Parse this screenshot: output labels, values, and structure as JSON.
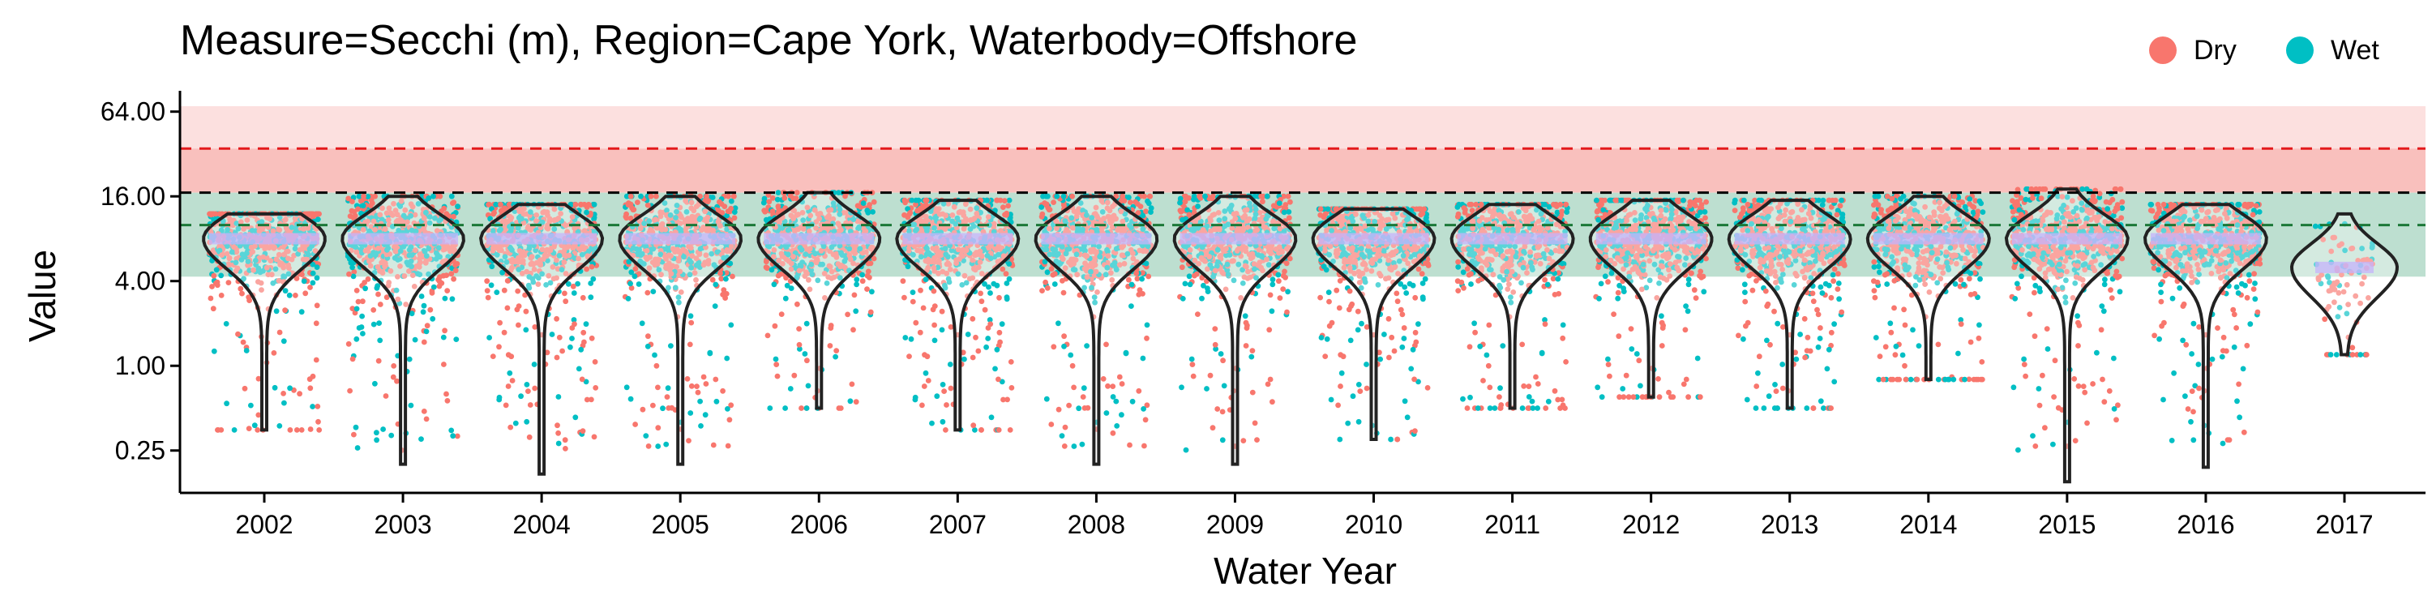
{
  "chart_data": {
    "type": "violin",
    "title": "Measure=Secchi (m), Region=Cape York, Waterbody=Offshore",
    "xlabel": "Water Year",
    "ylabel": "Value",
    "y_scale": "log2",
    "ylim": [
      0.125,
      90
    ],
    "y_ticks": [
      0.25,
      1.0,
      4.0,
      16.0,
      64.0
    ],
    "y_tick_labels": [
      "0.25",
      "1.00",
      "4.00",
      "16.00",
      "64.00"
    ],
    "categories": [
      "2002",
      "2003",
      "2004",
      "2005",
      "2006",
      "2007",
      "2008",
      "2009",
      "2010",
      "2011",
      "2012",
      "2013",
      "2014",
      "2015",
      "2016",
      "2017"
    ],
    "legend": {
      "position": "top-right",
      "entries": [
        {
          "name": "Dry",
          "color": "#F8766D"
        },
        {
          "name": "Wet",
          "color": "#00BFC4"
        }
      ]
    },
    "reference_lines": [
      {
        "value": 35,
        "color": "#E31A1C",
        "style": "dashed"
      },
      {
        "value": 17,
        "color": "#000000",
        "style": "dashed"
      },
      {
        "value": 10,
        "color": "#1B7837",
        "style": "dashed"
      }
    ],
    "bands": [
      {
        "from": 35,
        "to": 70,
        "color": "#FCE0DF"
      },
      {
        "from": 17,
        "to": 35,
        "color": "#F9C0BD"
      },
      {
        "from": 4.3,
        "to": 17,
        "color": "#BDDFD0"
      }
    ],
    "violins": [
      {
        "year": "2002",
        "min": 0.35,
        "max": 12,
        "median": 8
      },
      {
        "year": "2003",
        "min": 0.2,
        "max": 16,
        "median": 8
      },
      {
        "year": "2004",
        "min": 0.17,
        "max": 14,
        "median": 8
      },
      {
        "year": "2005",
        "min": 0.2,
        "max": 16,
        "median": 8
      },
      {
        "year": "2006",
        "min": 0.5,
        "max": 17,
        "median": 8
      },
      {
        "year": "2007",
        "min": 0.35,
        "max": 15,
        "median": 8
      },
      {
        "year": "2008",
        "min": 0.2,
        "max": 16,
        "median": 8
      },
      {
        "year": "2009",
        "min": 0.2,
        "max": 16,
        "median": 8
      },
      {
        "year": "2010",
        "min": 0.3,
        "max": 13,
        "median": 8
      },
      {
        "year": "2011",
        "min": 0.5,
        "max": 14,
        "median": 8
      },
      {
        "year": "2012",
        "min": 0.6,
        "max": 15,
        "median": 8
      },
      {
        "year": "2013",
        "min": 0.5,
        "max": 15,
        "median": 8
      },
      {
        "year": "2014",
        "min": 0.8,
        "max": 16,
        "median": 8
      },
      {
        "year": "2015",
        "min": 0.15,
        "max": 18,
        "median": 8
      },
      {
        "year": "2016",
        "min": 0.19,
        "max": 14,
        "median": 8
      },
      {
        "year": "2017",
        "min": 1.2,
        "max": 12,
        "median": 5
      }
    ]
  }
}
